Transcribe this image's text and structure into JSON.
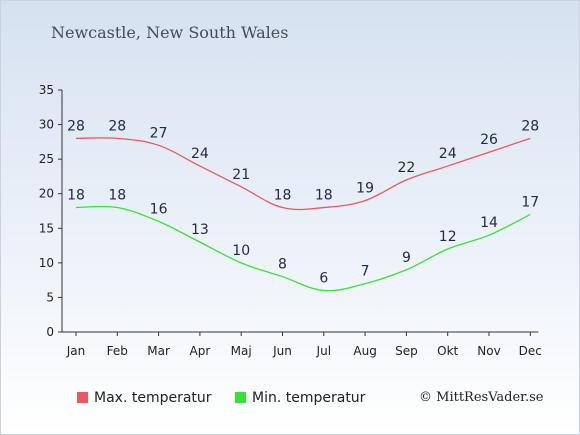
{
  "chart_data": {
    "type": "line",
    "title": "Newcastle, New South Wales",
    "categories": [
      "Jan",
      "Feb",
      "Mar",
      "Apr",
      "Maj",
      "Jun",
      "Jul",
      "Aug",
      "Sep",
      "Okt",
      "Nov",
      "Dec"
    ],
    "series": [
      {
        "name": "Max. temperatur",
        "color": "#e8585d",
        "values": [
          28,
          28,
          27,
          24,
          21,
          18,
          18,
          19,
          22,
          24,
          26,
          28
        ]
      },
      {
        "name": "Min. temperatur",
        "color": "#3ae03a",
        "values": [
          18,
          18,
          16,
          13,
          10,
          8,
          6,
          7,
          9,
          12,
          14,
          17
        ]
      }
    ],
    "y_ticks": [
      0,
      5,
      10,
      15,
      20,
      25,
      30,
      35
    ],
    "ylim": [
      0,
      35
    ],
    "grid": false,
    "legend_position": "bottom-left"
  },
  "credit": "© MittResVader.se"
}
